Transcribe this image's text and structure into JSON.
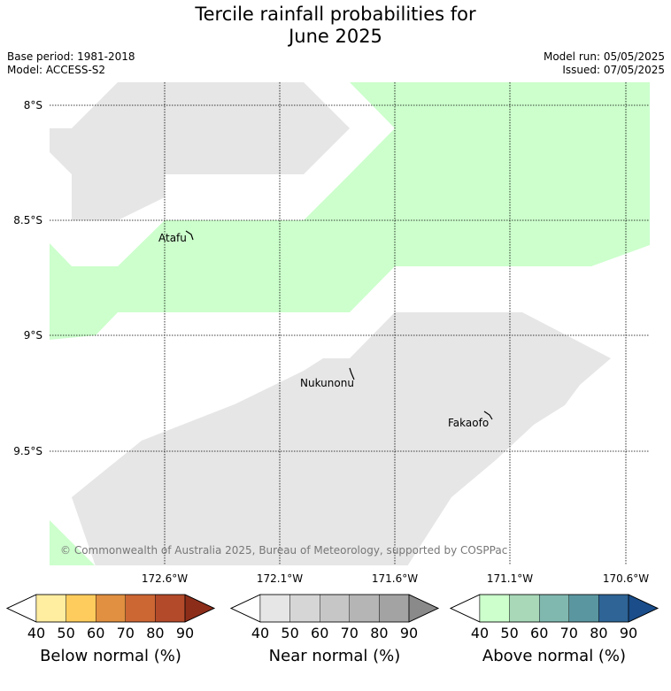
{
  "header": {
    "title_line1": "Tercile rainfall probabilities for",
    "title_line2": "June 2025",
    "base_period": "Base period: 1981-2018",
    "model": "Model: ACCESS-S2",
    "model_run": "Model run: 05/05/2025",
    "issued": "Issued: 07/05/2025"
  },
  "map": {
    "lat_labels": [
      "8°S",
      "8.5°S",
      "9°S",
      "9.5°S"
    ],
    "lon_labels": [
      "172.6°W",
      "172.1°W",
      "171.6°W",
      "171.1°W",
      "170.6°W"
    ],
    "places": [
      "Atafu",
      "Nukunonu",
      "Fakaofo"
    ],
    "copyright": "© Commonwealth of Australia 2025, Bureau of Meteorology, supported by COSPPac",
    "colors": {
      "near_normal_fill": "#e6e6e6",
      "above_normal_fill": "#ccffcc",
      "grid": "#000000"
    }
  },
  "colorbars": [
    {
      "title": "Below normal (%)",
      "ticks": [
        "40",
        "50",
        "60",
        "70",
        "80",
        "90"
      ],
      "colors": [
        "#ffffff",
        "#ffeda0",
        "#fecc5c",
        "#e09040",
        "#cc6633",
        "#b34a2a",
        "#8c2d1a"
      ]
    },
    {
      "title": "Near normal (%)",
      "ticks": [
        "40",
        "50",
        "60",
        "70",
        "80",
        "90"
      ],
      "colors": [
        "#ffffff",
        "#e6e6e6",
        "#d6d6d6",
        "#c6c6c6",
        "#b5b5b5",
        "#a3a3a3",
        "#8a8a8a"
      ]
    },
    {
      "title": "Above normal (%)",
      "ticks": [
        "40",
        "50",
        "60",
        "70",
        "80",
        "90"
      ],
      "colors": [
        "#ffffff",
        "#ccffcc",
        "#a8d8b8",
        "#80b8b0",
        "#5a96a0",
        "#2e6496",
        "#1a4d8a"
      ]
    }
  ]
}
